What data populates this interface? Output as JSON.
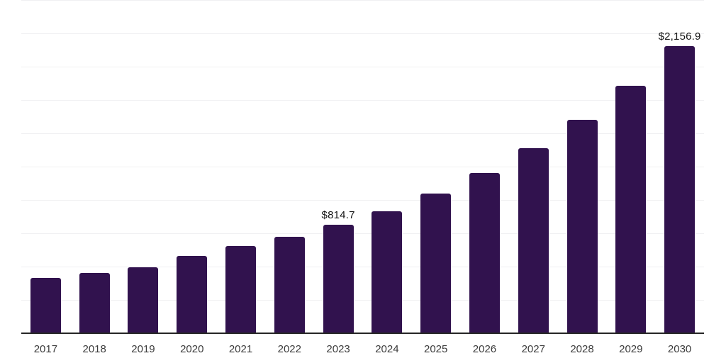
{
  "chart_data": {
    "type": "bar",
    "title": "",
    "xlabel": "",
    "ylabel": "",
    "categories": [
      "2017",
      "2018",
      "2019",
      "2020",
      "2021",
      "2022",
      "2023",
      "2024",
      "2025",
      "2026",
      "2027",
      "2028",
      "2029",
      "2030"
    ],
    "values": [
      415.0,
      452.0,
      495.0,
      580.0,
      654.0,
      723.5,
      814.7,
      915.0,
      1048.0,
      1202.0,
      1388.5,
      1601.0,
      1856.5,
      2156.9
    ],
    "data_labels": [
      "",
      "",
      "",
      "",
      "",
      "",
      "$814.7",
      "",
      "",
      "",
      "",
      "",
      "",
      "$2,156.9"
    ],
    "ylim": [
      0,
      2500
    ],
    "gridline_step": 250,
    "grid": "horizontal-only",
    "legend": "none",
    "y_axis_ticks": "hidden",
    "bar_color": "#31124E",
    "gridline_color": "#f0f0f2",
    "axis_color": "#262626",
    "data_label_color": "#141414",
    "tick_label_color": "#3b3b3b"
  }
}
